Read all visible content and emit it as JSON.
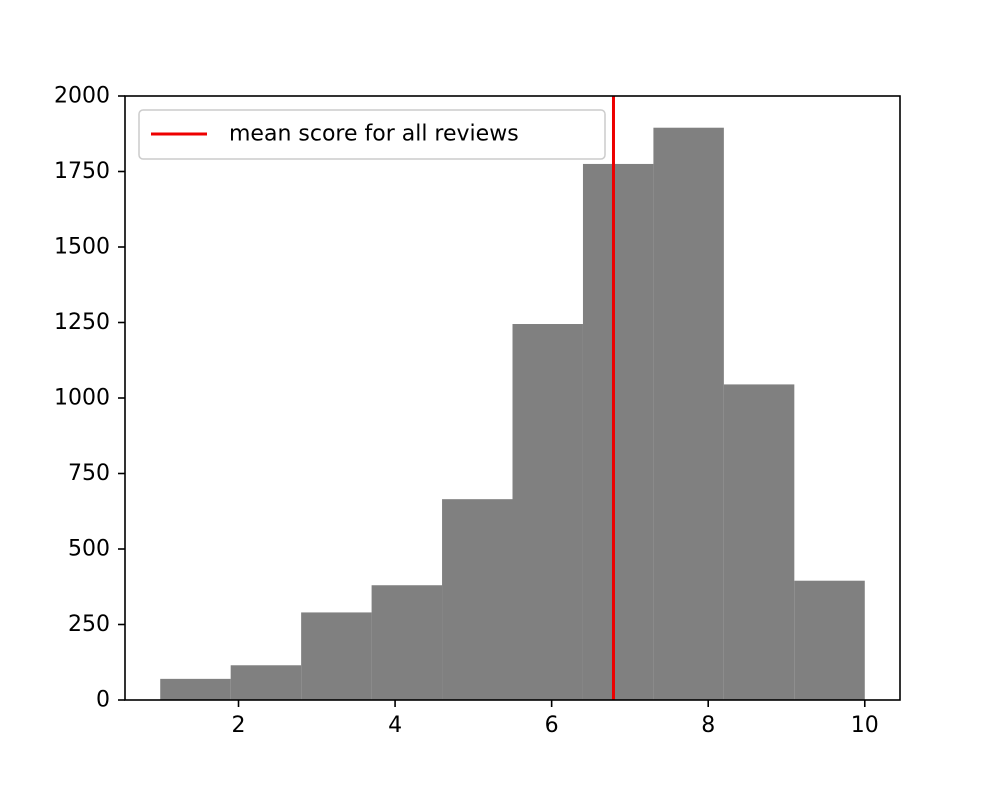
{
  "chart_data": {
    "type": "bar",
    "subtype": "histogram",
    "bin_edges": [
      1.0,
      1.9,
      2.8,
      3.7,
      4.6,
      5.5,
      6.4,
      7.3,
      8.2,
      9.1,
      10.0
    ],
    "counts": [
      70,
      115,
      290,
      380,
      665,
      1245,
      1775,
      1895,
      1045,
      395
    ],
    "xlim": [
      0.55,
      10.45
    ],
    "ylim": [
      0,
      2000
    ],
    "xticks": [
      2,
      4,
      6,
      8,
      10
    ],
    "yticks": [
      0,
      250,
      500,
      750,
      1000,
      1250,
      1500,
      1750,
      2000
    ],
    "grid": false,
    "bar_color": "#808080",
    "reference_line": {
      "x": 6.79,
      "color": "#ee0000",
      "label": "mean score for all reviews"
    },
    "legend": {
      "placement": "upper-left",
      "entries": [
        "mean score for all reviews"
      ]
    }
  }
}
